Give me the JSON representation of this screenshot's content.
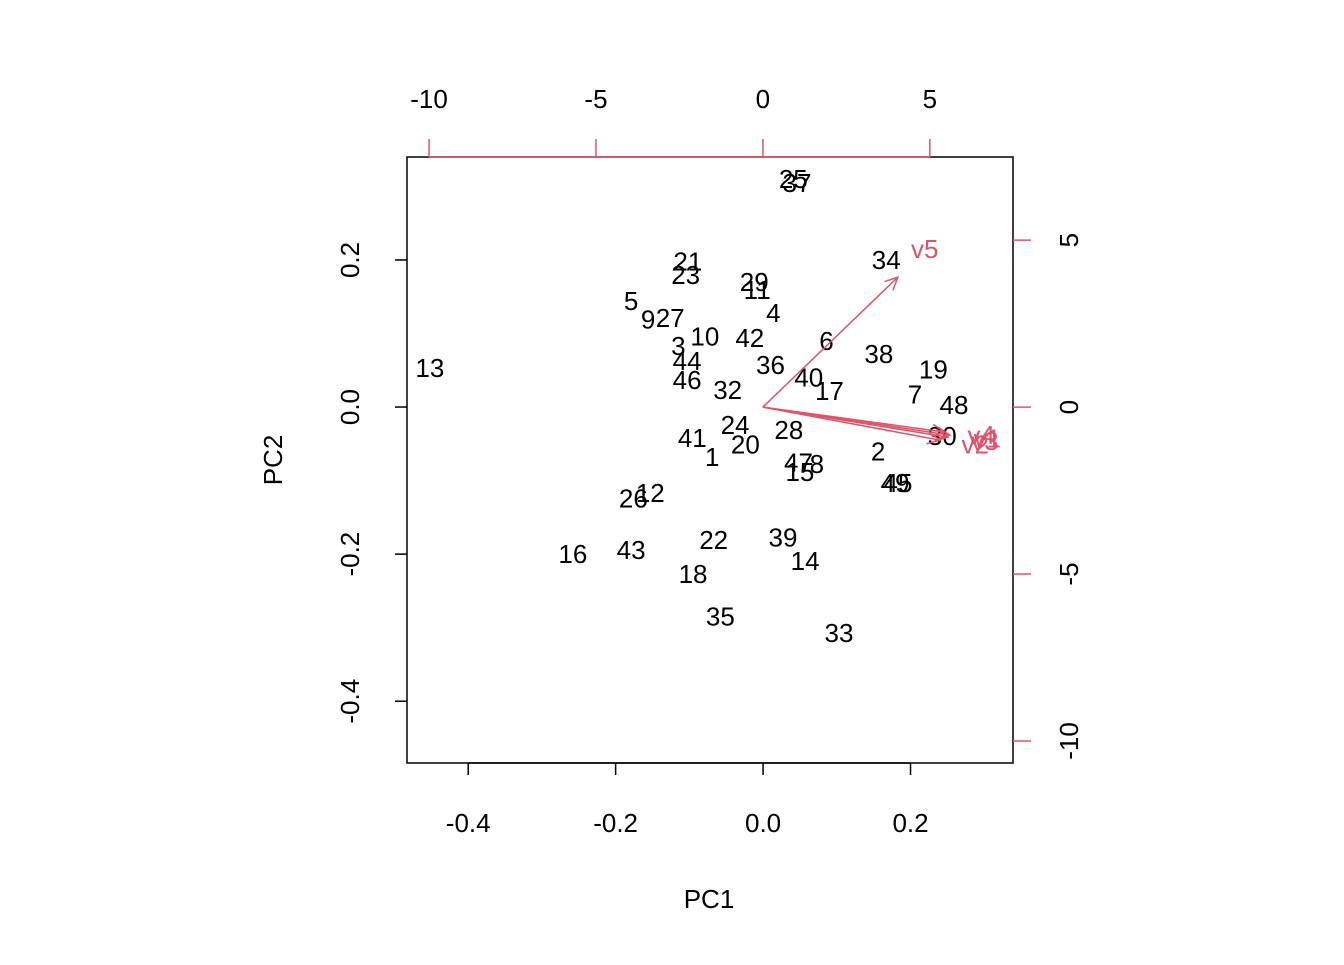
{
  "chart_data": {
    "type": "biplot",
    "x_label": "PC1",
    "y_label": "PC2",
    "xlim": [
      -0.483,
      0.339
    ],
    "ylim": [
      -0.484,
      0.34
    ],
    "xticks": [
      -0.4,
      -0.2,
      {
        "value": 0,
        "label": "0.0"
      },
      0.2
    ],
    "yticks": [
      -0.4,
      -0.2,
      {
        "value": 0,
        "label": "0.0"
      },
      0.2
    ],
    "x2lim": [
      -10.66,
      7.49
    ],
    "y2lim": [
      -10.66,
      7.49
    ],
    "x2ticks": [
      -10,
      -5,
      0,
      5
    ],
    "y2ticks": [
      -10,
      -5,
      0,
      5
    ],
    "points": {
      "color": "#000000",
      "labels": [
        "1",
        "2",
        "3",
        "4",
        "5",
        "6",
        "7",
        "8",
        "9",
        "10",
        "11",
        "12",
        "13",
        "14",
        "15",
        "16",
        "17",
        "18",
        "19",
        "20",
        "21",
        "22",
        "23",
        "24",
        "25",
        "26",
        "27",
        "28",
        "29",
        "30",
        "32",
        "33",
        "34",
        "35",
        "36",
        "37",
        "38",
        "39",
        "40",
        "41",
        "42",
        "43",
        "44",
        "45",
        "46",
        "47",
        "48",
        "49"
      ],
      "x": [
        -0.069,
        0.156,
        -0.115,
        0.014,
        -0.179,
        0.086,
        0.206,
        0.073,
        -0.156,
        -0.079,
        -0.008,
        -0.153,
        -0.452,
        0.057,
        0.05,
        -0.258,
        0.09,
        -0.095,
        0.231,
        -0.024,
        -0.102,
        -0.067,
        -0.105,
        -0.038,
        0.041,
        -0.176,
        -0.126,
        0.035,
        -0.012,
        0.243,
        -0.048,
        0.103,
        0.167,
        -0.058,
        0.01,
        0.046,
        0.157,
        0.027,
        0.062,
        -0.096,
        -0.018,
        -0.179,
        -0.103,
        0.183,
        -0.103,
        0.048,
        0.259,
        0.179
      ],
      "y": [
        -0.071,
        -0.063,
        0.08,
        0.125,
        0.141,
        0.087,
        0.014,
        -0.08,
        0.116,
        0.093,
        0.156,
        -0.12,
        0.05,
        -0.212,
        -0.091,
        -0.203,
        0.019,
        -0.23,
        0.048,
        -0.054,
        0.195,
        -0.184,
        0.177,
        -0.027,
        0.307,
        -0.127,
        0.118,
        -0.034,
        0.167,
        -0.042,
        0.02,
        -0.31,
        0.197,
        -0.288,
        0.054,
        0.302,
        0.069,
        -0.18,
        0.037,
        -0.045,
        0.091,
        -0.197,
        0.06,
        -0.106,
        0.034,
        -0.078,
        0,
        -0.106
      ]
    },
    "loadings": {
      "color": "#df536b",
      "names": [
        "v1",
        "v2",
        "v3",
        "v4",
        "v5"
      ],
      "x": [
        5.6,
        5.3,
        5.54,
        5.45,
        4.04
      ],
      "y": [
        -0.84,
        -0.99,
        -0.9,
        -0.75,
        3.89
      ]
    }
  }
}
